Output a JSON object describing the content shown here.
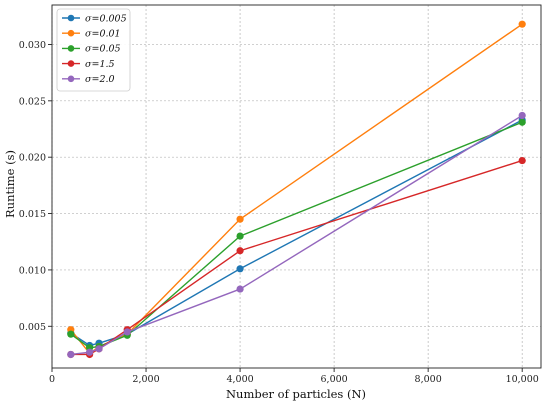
{
  "chart_data": {
    "type": "line",
    "xlabel": "Number of particles (N)",
    "ylabel": "Runtime (s)",
    "xlim": [
      0,
      10400
    ],
    "ylim": [
      0.0013,
      0.0335
    ],
    "xticks": [
      0,
      2000,
      4000,
      6000,
      8000,
      10000
    ],
    "xtick_labels": [
      "0",
      "2,000",
      "4,000",
      "6,000",
      "8,000",
      "10,000"
    ],
    "yticks": [
      0.005,
      0.01,
      0.015,
      0.02,
      0.025,
      0.03
    ],
    "ytick_labels": [
      "0.005",
      "0.010",
      "0.015",
      "0.020",
      "0.025",
      "0.030"
    ],
    "grid": true,
    "legend_position": "top-left",
    "x": [
      400,
      800,
      1000,
      1600,
      4000,
      10000
    ],
    "series": [
      {
        "name": "σ=0.005",
        "color": "#1f77b4",
        "values": [
          0.0044,
          0.0033,
          0.0035,
          0.0043,
          0.0101,
          0.0233
        ]
      },
      {
        "name": "σ=0.01",
        "color": "#ff7f0e",
        "values": [
          0.0047,
          0.0026,
          0.0032,
          0.0043,
          0.0145,
          0.0318
        ]
      },
      {
        "name": "σ=0.05",
        "color": "#2ca02c",
        "values": [
          0.0043,
          0.0031,
          0.0032,
          0.0042,
          0.013,
          0.0231
        ]
      },
      {
        "name": "σ=1.5",
        "color": "#d62728",
        "values": [
          0.0025,
          0.0025,
          0.003,
          0.0047,
          0.0117,
          0.0197
        ]
      },
      {
        "name": "σ=2.0",
        "color": "#9467bd",
        "values": [
          0.0025,
          0.0027,
          0.003,
          0.0045,
          0.0083,
          0.0237
        ]
      }
    ]
  }
}
